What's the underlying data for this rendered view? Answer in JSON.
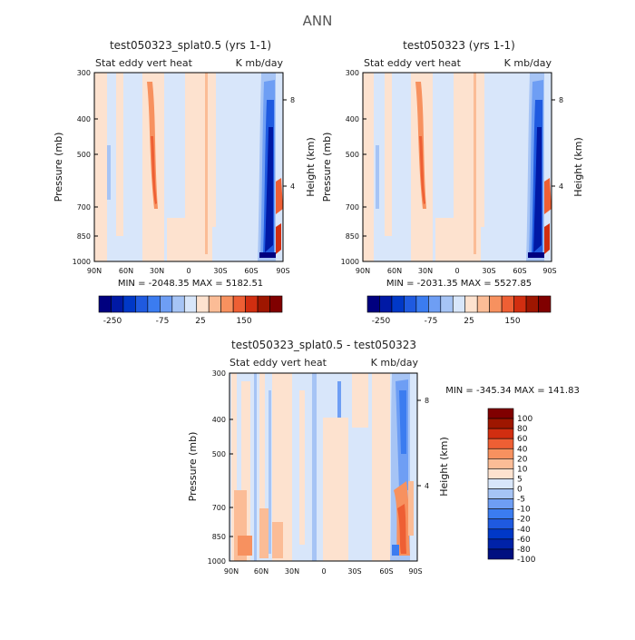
{
  "figure_title": "ANN",
  "colors": {
    "cbar12": [
      "#00007f",
      "#0019a5",
      "#0038c7",
      "#1f5ae0",
      "#3b7cf0",
      "#6e9ef4",
      "#a6c4f5",
      "#d8e6fa",
      "#fde2cf",
      "#fbbc96",
      "#f7915f",
      "#ee5f34",
      "#d12e10",
      "#9e1600",
      "#800000"
    ],
    "cbar3": [
      "#000f80",
      "#0022a8",
      "#0038c7",
      "#1f5ae0",
      "#3b7cf0",
      "#6e9ef4",
      "#a6c4f5",
      "#d8e6fa",
      "#fde2cf",
      "#fbbc96",
      "#f7915f",
      "#ee5f34",
      "#d12e10",
      "#9e1600",
      "#800000"
    ]
  },
  "chart_data": [
    {
      "type": "heatmap",
      "title": "test050323_splat0.5 (yrs 1-1)",
      "left_label": "Stat eddy vert heat",
      "right_label": "K mb/day",
      "ylabel": "Pressure (mb)",
      "ylabel_right": "Height (km)",
      "xticks": [
        "90N",
        "60N",
        "30N",
        "0",
        "30S",
        "60S",
        "90S"
      ],
      "yticks": [
        "300",
        "400",
        "500",
        "700",
        "850",
        "1000"
      ],
      "yticks_right": [
        "8",
        "4"
      ],
      "minmax_text": "MIN = -2048.35   MAX = 5182.51",
      "colorbar_labels": [
        "-250",
        "-75",
        "25",
        "150"
      ]
    },
    {
      "type": "heatmap",
      "title": "test050323 (yrs 1-1)",
      "left_label": "Stat eddy vert heat",
      "right_label": "K mb/day",
      "ylabel": "Pressure (mb)",
      "ylabel_right": "Height (km)",
      "xticks": [
        "90N",
        "60N",
        "30N",
        "0",
        "30S",
        "60S",
        "90S"
      ],
      "yticks": [
        "300",
        "400",
        "500",
        "700",
        "850",
        "1000"
      ],
      "yticks_right": [
        "8",
        "4"
      ],
      "minmax_text": "MIN = -2031.35   MAX = 5527.85",
      "colorbar_labels": [
        "-250",
        "-75",
        "25",
        "150"
      ]
    },
    {
      "type": "heatmap",
      "title": "test050323_splat0.5 - test050323",
      "left_label": "Stat eddy vert heat",
      "right_label": "K mb/day",
      "ylabel": "Pressure (mb)",
      "ylabel_right": "Height (km)",
      "xticks": [
        "90N",
        "60N",
        "30N",
        "0",
        "30S",
        "60S",
        "90S"
      ],
      "yticks": [
        "300",
        "400",
        "500",
        "700",
        "850",
        "1000"
      ],
      "yticks_right": [
        "8",
        "4"
      ],
      "minmax_text": "MIN = -345.34   MAX = 141.83",
      "colorbar_labels": [
        "100",
        "80",
        "60",
        "40",
        "20",
        "10",
        "5",
        "0",
        "-5",
        "-10",
        "-20",
        "-40",
        "-60",
        "-80",
        "-100"
      ]
    }
  ]
}
